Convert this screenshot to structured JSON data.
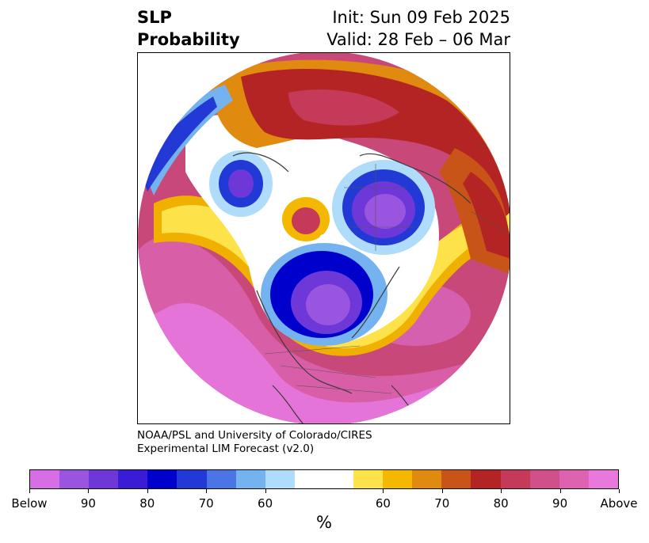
{
  "title": {
    "variable": "SLP",
    "subtitle": "Probability",
    "init": "Init: Sun 09 Feb 2025",
    "valid": "Valid: 28 Feb – 06 Mar"
  },
  "credit": {
    "line1": "NOAA/PSL and University of Colorado/CIRES",
    "line2": "Experimental LIM Forecast (v2.0)"
  },
  "colorbar": {
    "colors": [
      "#d86ee6",
      "#9a55e0",
      "#6e38d8",
      "#3a1bd6",
      "#0000cc",
      "#2239d6",
      "#4b74e4",
      "#74b2f0",
      "#aedcfa",
      "#ffffff",
      "#ffffff",
      "#fde24a",
      "#f5b800",
      "#e08a10",
      "#c85418",
      "#b42424",
      "#c43a58",
      "#d0508c",
      "#dd62b0",
      "#e978dc"
    ],
    "tick_labels": [
      "Below",
      "90",
      "80",
      "70",
      "60",
      "60",
      "70",
      "80",
      "90",
      "Above"
    ],
    "units": "%"
  }
}
